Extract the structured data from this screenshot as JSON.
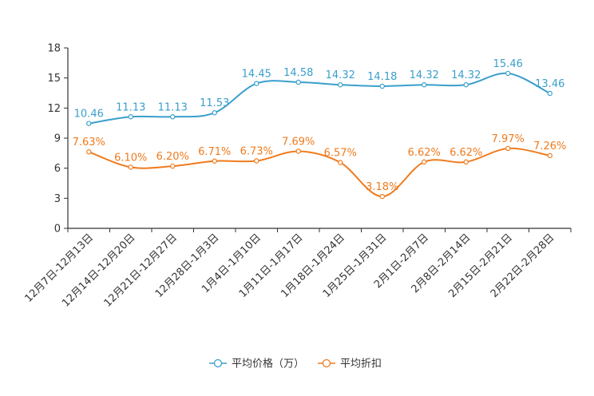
{
  "chart_data": {
    "type": "line",
    "title": "",
    "xlabel": "",
    "ylabel": "",
    "ylim": [
      0,
      18
    ],
    "yticks": [
      0,
      3,
      6,
      9,
      12,
      15,
      18
    ],
    "grid": false,
    "legend_position": "bottom-center",
    "categories": [
      "12月7日-12月13日",
      "12月14日-12月20日",
      "12月21日-12月27日",
      "12月28日-1月3日",
      "1月4日-1月10日",
      "1月11日-1月17日",
      "1月18日-1月24日",
      "1月25日-1月31日",
      "2月1日-2月7日",
      "2月8日-2月14日",
      "2月15日-2月21日",
      "2月22日-2月28日"
    ],
    "series": [
      {
        "name": "平均价格（万）",
        "color": "#3a9fcc",
        "values": [
          10.46,
          11.13,
          11.13,
          11.53,
          14.45,
          14.58,
          14.32,
          14.18,
          14.32,
          14.32,
          15.46,
          13.46
        ],
        "labels": [
          "10.46",
          "11.13",
          "11.13",
          "11.53",
          "14.45",
          "14.58",
          "14.32",
          "14.18",
          "14.32",
          "14.32",
          "15.46",
          "13.46"
        ]
      },
      {
        "name": "平均折扣",
        "color": "#f07b1d",
        "values": [
          7.63,
          6.1,
          6.2,
          6.71,
          6.73,
          7.69,
          6.57,
          3.18,
          6.62,
          6.62,
          7.97,
          7.26
        ],
        "labels": [
          "7.63%",
          "6.10%",
          "6.20%",
          "6.71%",
          "6.73%",
          "7.69%",
          "6.57%",
          "3.18%",
          "6.62%",
          "6.62%",
          "7.97%",
          "7.26%"
        ]
      }
    ]
  }
}
